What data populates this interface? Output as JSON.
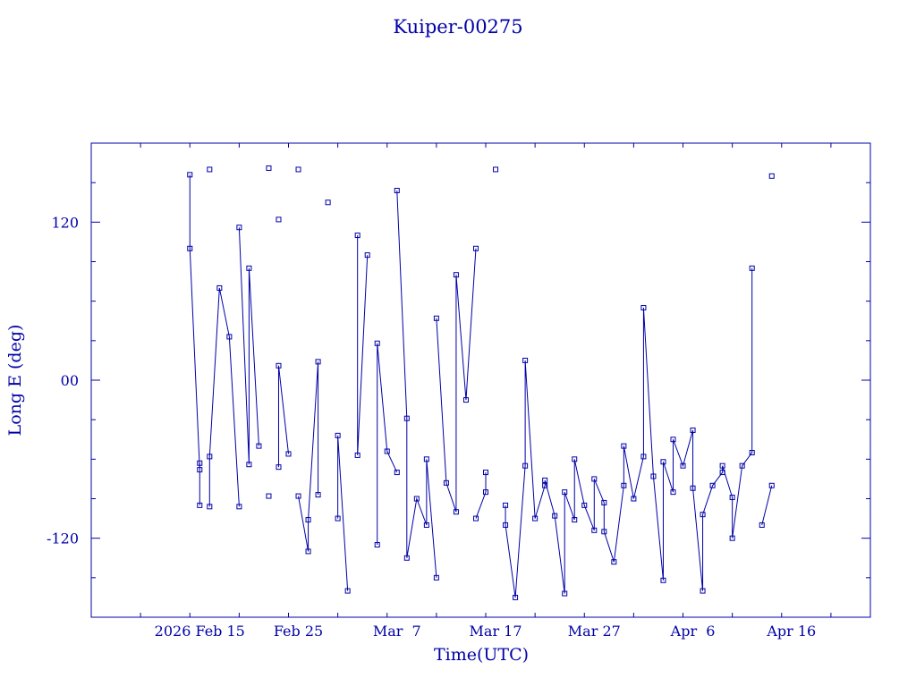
{
  "colors": {
    "ink": "#0000a8",
    "background": "#ffffff"
  },
  "chart_data": {
    "type": "scatter",
    "title": "Kuiper-00275",
    "xlabel": "Time(UTC)",
    "ylabel": "Long E (deg)",
    "x_is_date": true,
    "xlim": [
      "2026-02-04",
      "2026-04-24"
    ],
    "ylim": [
      -180,
      180
    ],
    "xtick_labels": [
      "2026 Feb 15",
      "Feb 25",
      "Mar  7",
      "Mar 17",
      "Mar 27",
      "Apr  6",
      "Apr 16"
    ],
    "xtick_dates": [
      "2026-02-15",
      "2026-02-25",
      "2026-03-07",
      "2026-03-17",
      "2026-03-27",
      "2026-04-06",
      "2026-04-16"
    ],
    "ytick_labels": [
      "120",
      "00",
      "-120"
    ],
    "ytick_values": [
      120,
      0,
      -120
    ],
    "grid": false,
    "legend": "none",
    "connected_markers": true,
    "series": [
      {
        "x": [
          "2026-02-14",
          "2026-02-14",
          "2026-02-15",
          "2026-02-15",
          "2026-02-15",
          "2026-02-16",
          "2026-02-16",
          "2026-02-16",
          "2026-02-17",
          "2026-02-18",
          "2026-02-19",
          "2026-02-19",
          "2026-02-20",
          "2026-02-20",
          "2026-02-21",
          "2026-02-22",
          "2026-02-22",
          "2026-02-23",
          "2026-02-23",
          "2026-02-23",
          "2026-02-24",
          "2026-02-25",
          "2026-02-25",
          "2026-02-26",
          "2026-02-26",
          "2026-02-27",
          "2026-02-27",
          "2026-02-28",
          "2026-03-01",
          "2026-03-01",
          "2026-03-02",
          "2026-03-03",
          "2026-03-03",
          "2026-03-04",
          "2026-03-05",
          "2026-03-05",
          "2026-03-06",
          "2026-03-07",
          "2026-03-07",
          "2026-03-08",
          "2026-03-08",
          "2026-03-09",
          "2026-03-10",
          "2026-03-10",
          "2026-03-11",
          "2026-03-11",
          "2026-03-12",
          "2026-03-13",
          "2026-03-13",
          "2026-03-14",
          "2026-03-15",
          "2026-03-15",
          "2026-03-16",
          "2026-03-16",
          "2026-03-17",
          "2026-03-18",
          "2026-03-18",
          "2026-03-19",
          "2026-03-20",
          "2026-03-20",
          "2026-03-21",
          "2026-03-22",
          "2026-03-22",
          "2026-03-23",
          "2026-03-24",
          "2026-03-24",
          "2026-03-25",
          "2026-03-25",
          "2026-03-26",
          "2026-03-27",
          "2026-03-27",
          "2026-03-28",
          "2026-03-28",
          "2026-03-29",
          "2026-03-30",
          "2026-03-30",
          "2026-03-31",
          "2026-04-01",
          "2026-04-01",
          "2026-04-02",
          "2026-04-03",
          "2026-04-03",
          "2026-04-04",
          "2026-04-04",
          "2026-04-05",
          "2026-04-06",
          "2026-04-06",
          "2026-04-07",
          "2026-04-07",
          "2026-04-08",
          "2026-04-09",
          "2026-04-09",
          "2026-04-10",
          "2026-04-10",
          "2026-04-11",
          "2026-04-12",
          "2026-04-12",
          "2026-04-13",
          "2026-04-14",
          "2026-04-14"
        ],
        "y": [
          156,
          100,
          -68,
          -95,
          -63,
          160,
          -96,
          -58,
          70,
          33,
          -96,
          116,
          -64,
          85,
          -50,
          161,
          -88,
          122,
          -66,
          11,
          -56,
          160,
          -88,
          -130,
          -106,
          14,
          -87,
          135,
          -105,
          -42,
          -160,
          110,
          -57,
          95,
          -125,
          28,
          -54,
          -70,
          144,
          -29,
          -135,
          -90,
          -110,
          -60,
          -150,
          47,
          -78,
          -100,
          80,
          -15,
          100,
          -105,
          -85,
          -70,
          160,
          -95,
          -110,
          -165,
          -65,
          15,
          -105,
          -80,
          -76,
          -103,
          -162,
          -85,
          -106,
          -60,
          -95,
          -114,
          -75,
          -93,
          -115,
          -138,
          -80,
          -50,
          -90,
          -58,
          55,
          -73,
          -152,
          -62,
          -85,
          -45,
          -65,
          -38,
          -82,
          -160,
          -102,
          -80,
          -70,
          -65,
          -89,
          -120,
          -65,
          -55,
          85,
          -110,
          -80,
          155
        ],
        "y_note_removed": true
      }
    ]
  }
}
